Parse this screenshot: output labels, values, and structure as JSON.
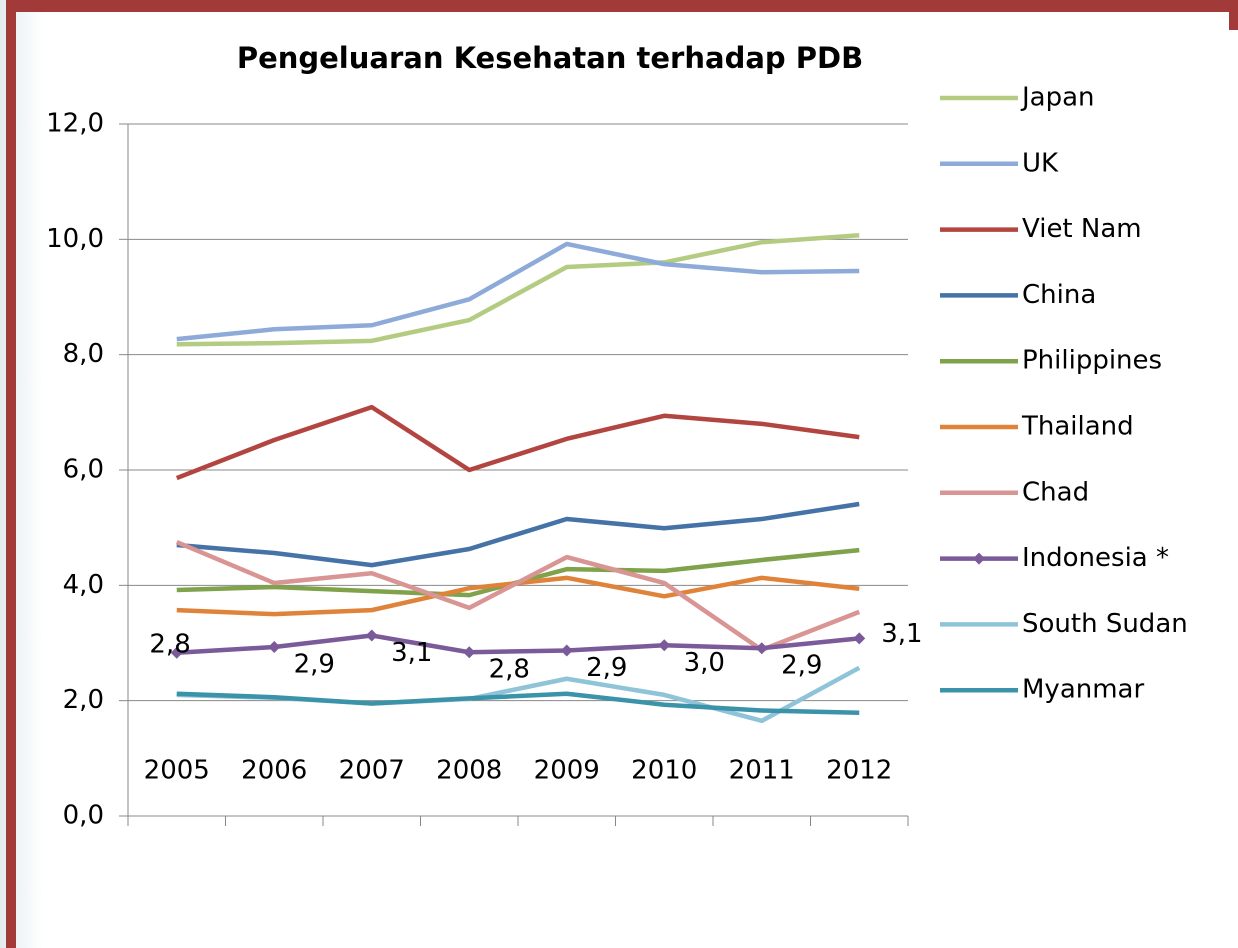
{
  "chart_data": {
    "type": "line",
    "title": "Pengeluaran Kesehatan terhadap PDB",
    "categories": [
      "2005",
      "2006",
      "2007",
      "2008",
      "2009",
      "2010",
      "2011",
      "2012"
    ],
    "ylim": [
      0,
      12
    ],
    "yticks": [
      {
        "value": 0,
        "label": "0,0"
      },
      {
        "value": 2,
        "label": "2,0"
      },
      {
        "value": 4,
        "label": "4,0"
      },
      {
        "value": 6,
        "label": "6,0"
      },
      {
        "value": 8,
        "label": "8,0"
      },
      {
        "value": 10,
        "label": "10,0"
      },
      {
        "value": 12,
        "label": "12,0"
      }
    ],
    "grid": true,
    "legend": "right",
    "series": [
      {
        "name": "Japan",
        "color": "#b3cc82",
        "values": [
          8.18,
          8.2,
          8.24,
          8.6,
          9.52,
          9.6,
          9.95,
          10.07
        ]
      },
      {
        "name": "UK",
        "color": "#8eaad8",
        "values": [
          8.27,
          8.44,
          8.51,
          8.96,
          9.92,
          9.57,
          9.43,
          9.45
        ]
      },
      {
        "name": "Viet Nam",
        "color": "#b34541",
        "values": [
          5.86,
          6.52,
          7.09,
          6.0,
          6.54,
          6.94,
          6.8,
          6.57
        ]
      },
      {
        "name": "China",
        "color": "#4572a7",
        "values": [
          4.7,
          4.56,
          4.35,
          4.63,
          5.15,
          4.99,
          5.15,
          5.41
        ]
      },
      {
        "name": "Philippines",
        "color": "#7fa24a",
        "values": [
          3.92,
          3.97,
          3.9,
          3.83,
          4.28,
          4.25,
          4.44,
          4.61
        ]
      },
      {
        "name": "Thailand",
        "color": "#e0833a",
        "values": [
          3.57,
          3.5,
          3.57,
          3.95,
          4.13,
          3.81,
          4.13,
          3.94
        ]
      },
      {
        "name": "Chad",
        "color": "#d99594",
        "values": [
          4.75,
          4.04,
          4.21,
          3.61,
          4.49,
          4.04,
          2.88,
          3.54
        ]
      },
      {
        "name": "Indonesia *",
        "color": "#7b5a9a",
        "marker": "diamond",
        "values": [
          2.83,
          2.93,
          3.13,
          2.84,
          2.87,
          2.96,
          2.91,
          3.08
        ],
        "value_labels": [
          "2,8",
          "2,9",
          "3,1",
          "2,8",
          "2,9",
          "3,0",
          "2,9",
          "3,1"
        ]
      },
      {
        "name": "South Sudan",
        "color": "#8fc3d8",
        "values": [
          2.1,
          2.05,
          1.95,
          2.03,
          2.38,
          2.1,
          1.65,
          2.57
        ]
      },
      {
        "name": "Myanmar",
        "color": "#3a93a8",
        "values": [
          2.12,
          2.06,
          1.95,
          2.04,
          2.12,
          1.93,
          1.83,
          1.79
        ]
      }
    ]
  }
}
